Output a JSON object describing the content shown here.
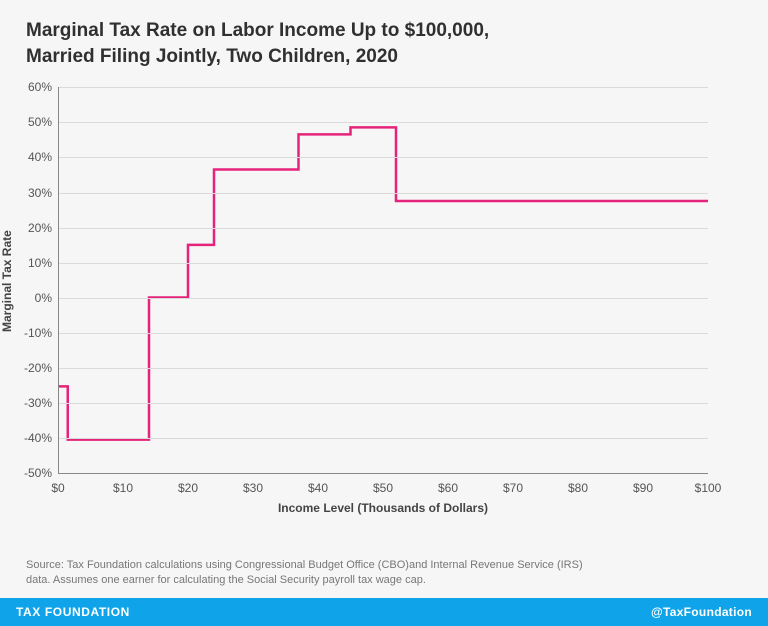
{
  "title_line1": "Marginal Tax Rate on Labor Income Up to $100,000,",
  "title_line2": "Married Filing Jointly, Two Children, 2020",
  "chart": {
    "type": "line-step",
    "line_color": "#e6237a",
    "line_width": 2.5,
    "background_color": "#f6f6f6",
    "grid_color": "#dadada",
    "axis_color": "#888888",
    "tick_font_color": "#555555",
    "tick_fontsize": 12,
    "label_fontsize": 12,
    "ylabel": "Marginal Tax Rate",
    "xlabel": "Income Level (Thousands of Dollars)",
    "xlim": [
      0,
      100
    ],
    "ylim": [
      -50,
      60
    ],
    "ytick_step": 10,
    "xtick_step": 10,
    "yticks": [
      -50,
      -40,
      -30,
      -20,
      -10,
      0,
      10,
      20,
      30,
      40,
      50,
      60
    ],
    "ytick_labels": [
      "-50%",
      "-40%",
      "-30%",
      "-20%",
      "-10%",
      "0%",
      "10%",
      "20%",
      "30%",
      "40%",
      "50%",
      "60%"
    ],
    "xticks": [
      0,
      10,
      20,
      30,
      40,
      50,
      60,
      70,
      80,
      90,
      100
    ],
    "xtick_labels": [
      "$0",
      "$10",
      "$20",
      "$30",
      "$40",
      "$50",
      "$60",
      "$70",
      "$80",
      "$90",
      "$100"
    ],
    "series": {
      "points": [
        {
          "x": 0,
          "y": -25.3
        },
        {
          "x": 1.5,
          "y": -25.3
        },
        {
          "x": 1.5,
          "y": -40.5
        },
        {
          "x": 14,
          "y": -40.5
        },
        {
          "x": 14,
          "y": 0
        },
        {
          "x": 20,
          "y": 0
        },
        {
          "x": 20,
          "y": 15
        },
        {
          "x": 24,
          "y": 15
        },
        {
          "x": 24,
          "y": 36.5
        },
        {
          "x": 37,
          "y": 36.5
        },
        {
          "x": 37,
          "y": 46.5
        },
        {
          "x": 45,
          "y": 46.5
        },
        {
          "x": 45,
          "y": 48.5
        },
        {
          "x": 52,
          "y": 48.5
        },
        {
          "x": 52,
          "y": 27.5
        },
        {
          "x": 100,
          "y": 27.5
        }
      ]
    }
  },
  "source_line1": "Source: Tax Foundation calculations using Congressional Budget Office (CBO)and Internal Revenue Service (IRS)",
  "source_line2": "data. Assumes one earner for calculating the Social Security payroll tax wage cap.",
  "footer": {
    "brand": "TAX FOUNDATION",
    "handle": "@TaxFoundation",
    "bg_color": "#0fa4e9"
  }
}
